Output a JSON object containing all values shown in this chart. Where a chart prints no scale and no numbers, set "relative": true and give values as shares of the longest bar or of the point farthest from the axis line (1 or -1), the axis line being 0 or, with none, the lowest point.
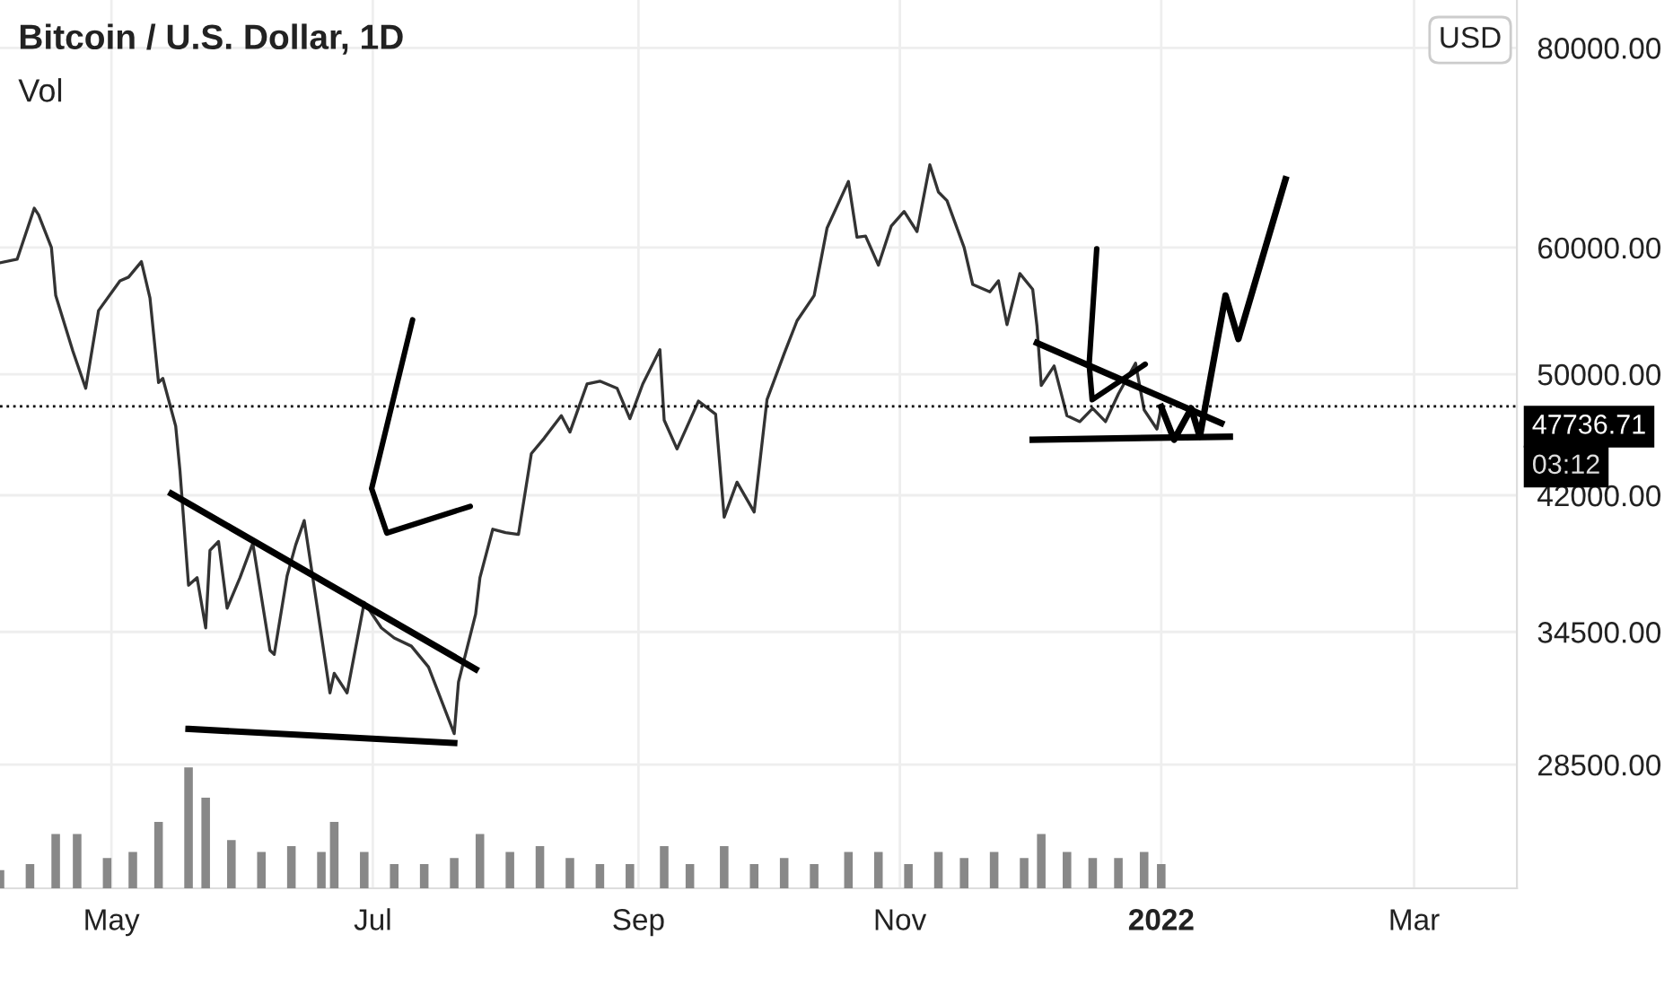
{
  "chart_data": [
    {
      "type": "line",
      "title": "Bitcoin / U.S. Dollar, 1D",
      "annotations": [
        "Vol",
        "USD",
        "03:12"
      ],
      "x": [
        "2021-04-05",
        "2021-04-09",
        "2021-04-13",
        "2021-04-14",
        "2021-04-17",
        "2021-04-18",
        "2021-04-22",
        "2021-04-25",
        "2021-04-28",
        "2021-05-03",
        "2021-05-05",
        "2021-05-08",
        "2021-05-10",
        "2021-05-12",
        "2021-05-13",
        "2021-05-16",
        "2021-05-17",
        "2021-05-19",
        "2021-05-21",
        "2021-05-23",
        "2021-05-24",
        "2021-05-26",
        "2021-05-28",
        "2021-05-31",
        "2021-06-03",
        "2021-06-07",
        "2021-06-08",
        "2021-06-11",
        "2021-06-13",
        "2021-06-15",
        "2021-06-18",
        "2021-06-21",
        "2021-06-22",
        "2021-06-25",
        "2021-06-29",
        "2021-07-03",
        "2021-07-06",
        "2021-07-10",
        "2021-07-14",
        "2021-07-20",
        "2021-07-21",
        "2021-07-25",
        "2021-07-26",
        "2021-07-29",
        "2021-08-01",
        "2021-08-04",
        "2021-08-07",
        "2021-08-10",
        "2021-08-14",
        "2021-08-16",
        "2021-08-20",
        "2021-08-23",
        "2021-08-27",
        "2021-08-30",
        "2021-09-02",
        "2021-09-06",
        "2021-09-07",
        "2021-09-10",
        "2021-09-15",
        "2021-09-19",
        "2021-09-21",
        "2021-09-24",
        "2021-09-28",
        "2021-10-01",
        "2021-10-05",
        "2021-10-08",
        "2021-10-12",
        "2021-10-15",
        "2021-10-20",
        "2021-10-22",
        "2021-10-24",
        "2021-10-27",
        "2021-10-30",
        "2021-11-02",
        "2021-11-05",
        "2021-11-08",
        "2021-11-10",
        "2021-11-12",
        "2021-11-16",
        "2021-11-18",
        "2021-11-22",
        "2021-11-24",
        "2021-11-26",
        "2021-11-29",
        "2021-12-02",
        "2021-12-03",
        "2021-12-04",
        "2021-12-07",
        "2021-12-10",
        "2021-12-13",
        "2021-12-16",
        "2021-12-19",
        "2021-12-22",
        "2021-12-26",
        "2021-12-28",
        "2021-12-31",
        "2022-01-01"
      ],
      "series": [
        {
          "color": "#333333",
          "values": [
            58700,
            59000,
            63500,
            62900,
            60000,
            56000,
            51700,
            49000,
            54800,
            57200,
            57500,
            58800,
            55800,
            49400,
            49700,
            46400,
            43500,
            36900,
            37300,
            34700,
            38800,
            39300,
            35700,
            37300,
            39200,
            33600,
            33400,
            37400,
            39100,
            40500,
            35800,
            31600,
            32500,
            31600,
            36000,
            34700,
            34200,
            33800,
            32800,
            29800,
            32100,
            35400,
            37300,
            40000,
            39800,
            39700,
            44600,
            45600,
            47100,
            46000,
            49300,
            49500,
            49000,
            46900,
            49300,
            51800,
            46800,
            44900,
            48100,
            47200,
            40700,
            42800,
            41000,
            48200,
            51500,
            54000,
            56000,
            61700,
            66000,
            60900,
            61000,
            58500,
            61900,
            63200,
            61400,
            67600,
            65000,
            64200,
            60000,
            56900,
            56300,
            57200,
            53700,
            57800,
            56500,
            53600,
            49200,
            50600,
            47100,
            46700,
            47600,
            46700,
            48600,
            50800,
            47500,
            46200,
            47700
          ]
        },
        {
          "type": "line",
          "color": "#000000",
          "x": [
            "2021-05-15",
            "2021-07-25"
          ],
          "values": [
            42100,
            32700
          ]
        },
        {
          "type": "line",
          "color": "#000000",
          "x": [
            "2021-05-19",
            "2021-07-20"
          ],
          "values": [
            30000,
            29400
          ]
        },
        {
          "type": "line",
          "color": "#000000",
          "x": [
            "2021-12-03",
            "2022-01-15"
          ],
          "values": [
            52300,
            46600
          ]
        },
        {
          "type": "line",
          "color": "#000000",
          "x": [
            "2021-12-02",
            "2022-01-17"
          ],
          "values": [
            45500,
            45700
          ]
        },
        {
          "type": "line",
          "color": "#000000",
          "x": [
            "2022-01-01",
            "2022-01-04",
            "2022-01-08",
            "2022-01-10",
            "2022-01-16",
            "2022-01-19",
            "2022-01-30"
          ],
          "values": [
            47700,
            45500,
            47600,
            45700,
            56000,
            52600,
            66200
          ]
        }
      ],
      "log": "y",
      "ylim": [
        23850,
        85700
      ],
      "yticks": [
        {
          "value": 28500,
          "label": "28500.00"
        },
        {
          "value": 34500,
          "label": "34500.00"
        },
        {
          "value": 42000,
          "label": "42000.00"
        },
        {
          "value": 50000,
          "label": "50000.00"
        },
        {
          "value": 60000,
          "label": "60000.00"
        },
        {
          "value": 80000,
          "label": "80000.00"
        }
      ],
      "xlim": [
        "2021-04-05",
        "2022-03-25"
      ],
      "xticks": [
        {
          "value": "2021-05-01",
          "label": "May"
        },
        {
          "value": "2021-07-01",
          "label": "Jul"
        },
        {
          "value": "2021-09-01",
          "label": "Sep"
        },
        {
          "value": "2021-11-01",
          "label": "Nov"
        },
        {
          "value": "2022-01-01",
          "label": "2022"
        },
        {
          "value": "2022-03-01",
          "label": "Mar"
        }
      ],
      "grid": true,
      "ref_lines": [
        {
          "axis": "y",
          "value": 47736.71,
          "label": "47736.71",
          "line_style": "dotted",
          "color": "#000000"
        }
      ]
    },
    {
      "type": "bar",
      "relative": true,
      "tick_labels": false,
      "color": "#888888",
      "xlim": [
        "2021-04-05",
        "2022-03-25"
      ],
      "x": [
        "2021-04-05",
        "2021-04-12",
        "2021-04-18",
        "2021-04-23",
        "2021-04-30",
        "2021-05-06",
        "2021-05-12",
        "2021-05-19",
        "2021-05-23",
        "2021-05-29",
        "2021-06-05",
        "2021-06-12",
        "2021-06-19",
        "2021-06-22",
        "2021-06-29",
        "2021-07-06",
        "2021-07-13",
        "2021-07-20",
        "2021-07-26",
        "2021-08-02",
        "2021-08-09",
        "2021-08-16",
        "2021-08-23",
        "2021-08-30",
        "2021-09-07",
        "2021-09-13",
        "2021-09-21",
        "2021-09-28",
        "2021-10-05",
        "2021-10-12",
        "2021-10-20",
        "2021-10-27",
        "2021-11-03",
        "2021-11-10",
        "2021-11-16",
        "2021-11-23",
        "2021-11-30",
        "2021-12-04",
        "2021-12-10",
        "2021-12-16",
        "2021-12-22",
        "2021-12-28",
        "2022-01-01"
      ],
      "values": [
        0.15,
        0.2,
        0.45,
        0.45,
        0.25,
        0.3,
        0.55,
        1.0,
        0.75,
        0.4,
        0.3,
        0.35,
        0.3,
        0.55,
        0.3,
        0.2,
        0.2,
        0.25,
        0.45,
        0.3,
        0.35,
        0.25,
        0.2,
        0.2,
        0.35,
        0.2,
        0.35,
        0.2,
        0.25,
        0.2,
        0.3,
        0.3,
        0.2,
        0.3,
        0.25,
        0.3,
        0.25,
        0.45,
        0.3,
        0.25,
        0.25,
        0.3,
        0.2
      ]
    }
  ]
}
